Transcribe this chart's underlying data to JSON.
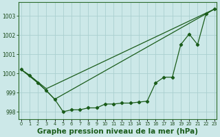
{
  "title": "Graphe pression niveau de la mer (hPa)",
  "background_color": "#cce8e8",
  "grid_color": "#aacfcf",
  "line_color": "#1a5c1a",
  "x_values": [
    0,
    1,
    2,
    3,
    4,
    5,
    6,
    7,
    8,
    9,
    10,
    11,
    12,
    13,
    14,
    15,
    16,
    17,
    18,
    19,
    20,
    21,
    22,
    23
  ],
  "line_main": [
    1000.2,
    999.9,
    999.5,
    999.1,
    998.65,
    998.0,
    998.1,
    998.1,
    998.2,
    998.2,
    998.4,
    998.4,
    998.45,
    998.45,
    998.5,
    998.55,
    999.5,
    999.8,
    999.8,
    1001.5,
    1002.05,
    1001.5,
    1003.1,
    1003.35
  ],
  "line_upper_x": [
    0,
    1,
    2,
    3,
    23
  ],
  "line_upper_y": [
    1000.2,
    999.9,
    999.55,
    999.2,
    1003.35
  ],
  "line_lower_x": [
    0,
    2,
    3,
    4,
    23
  ],
  "line_lower_y": [
    1000.2,
    999.5,
    999.1,
    998.65,
    1003.35
  ],
  "ylim": [
    997.6,
    1003.7
  ],
  "yticks": [
    998,
    999,
    1000,
    1001,
    1002,
    1003
  ],
  "xlim": [
    -0.3,
    23.3
  ],
  "title_fontsize": 7.5
}
